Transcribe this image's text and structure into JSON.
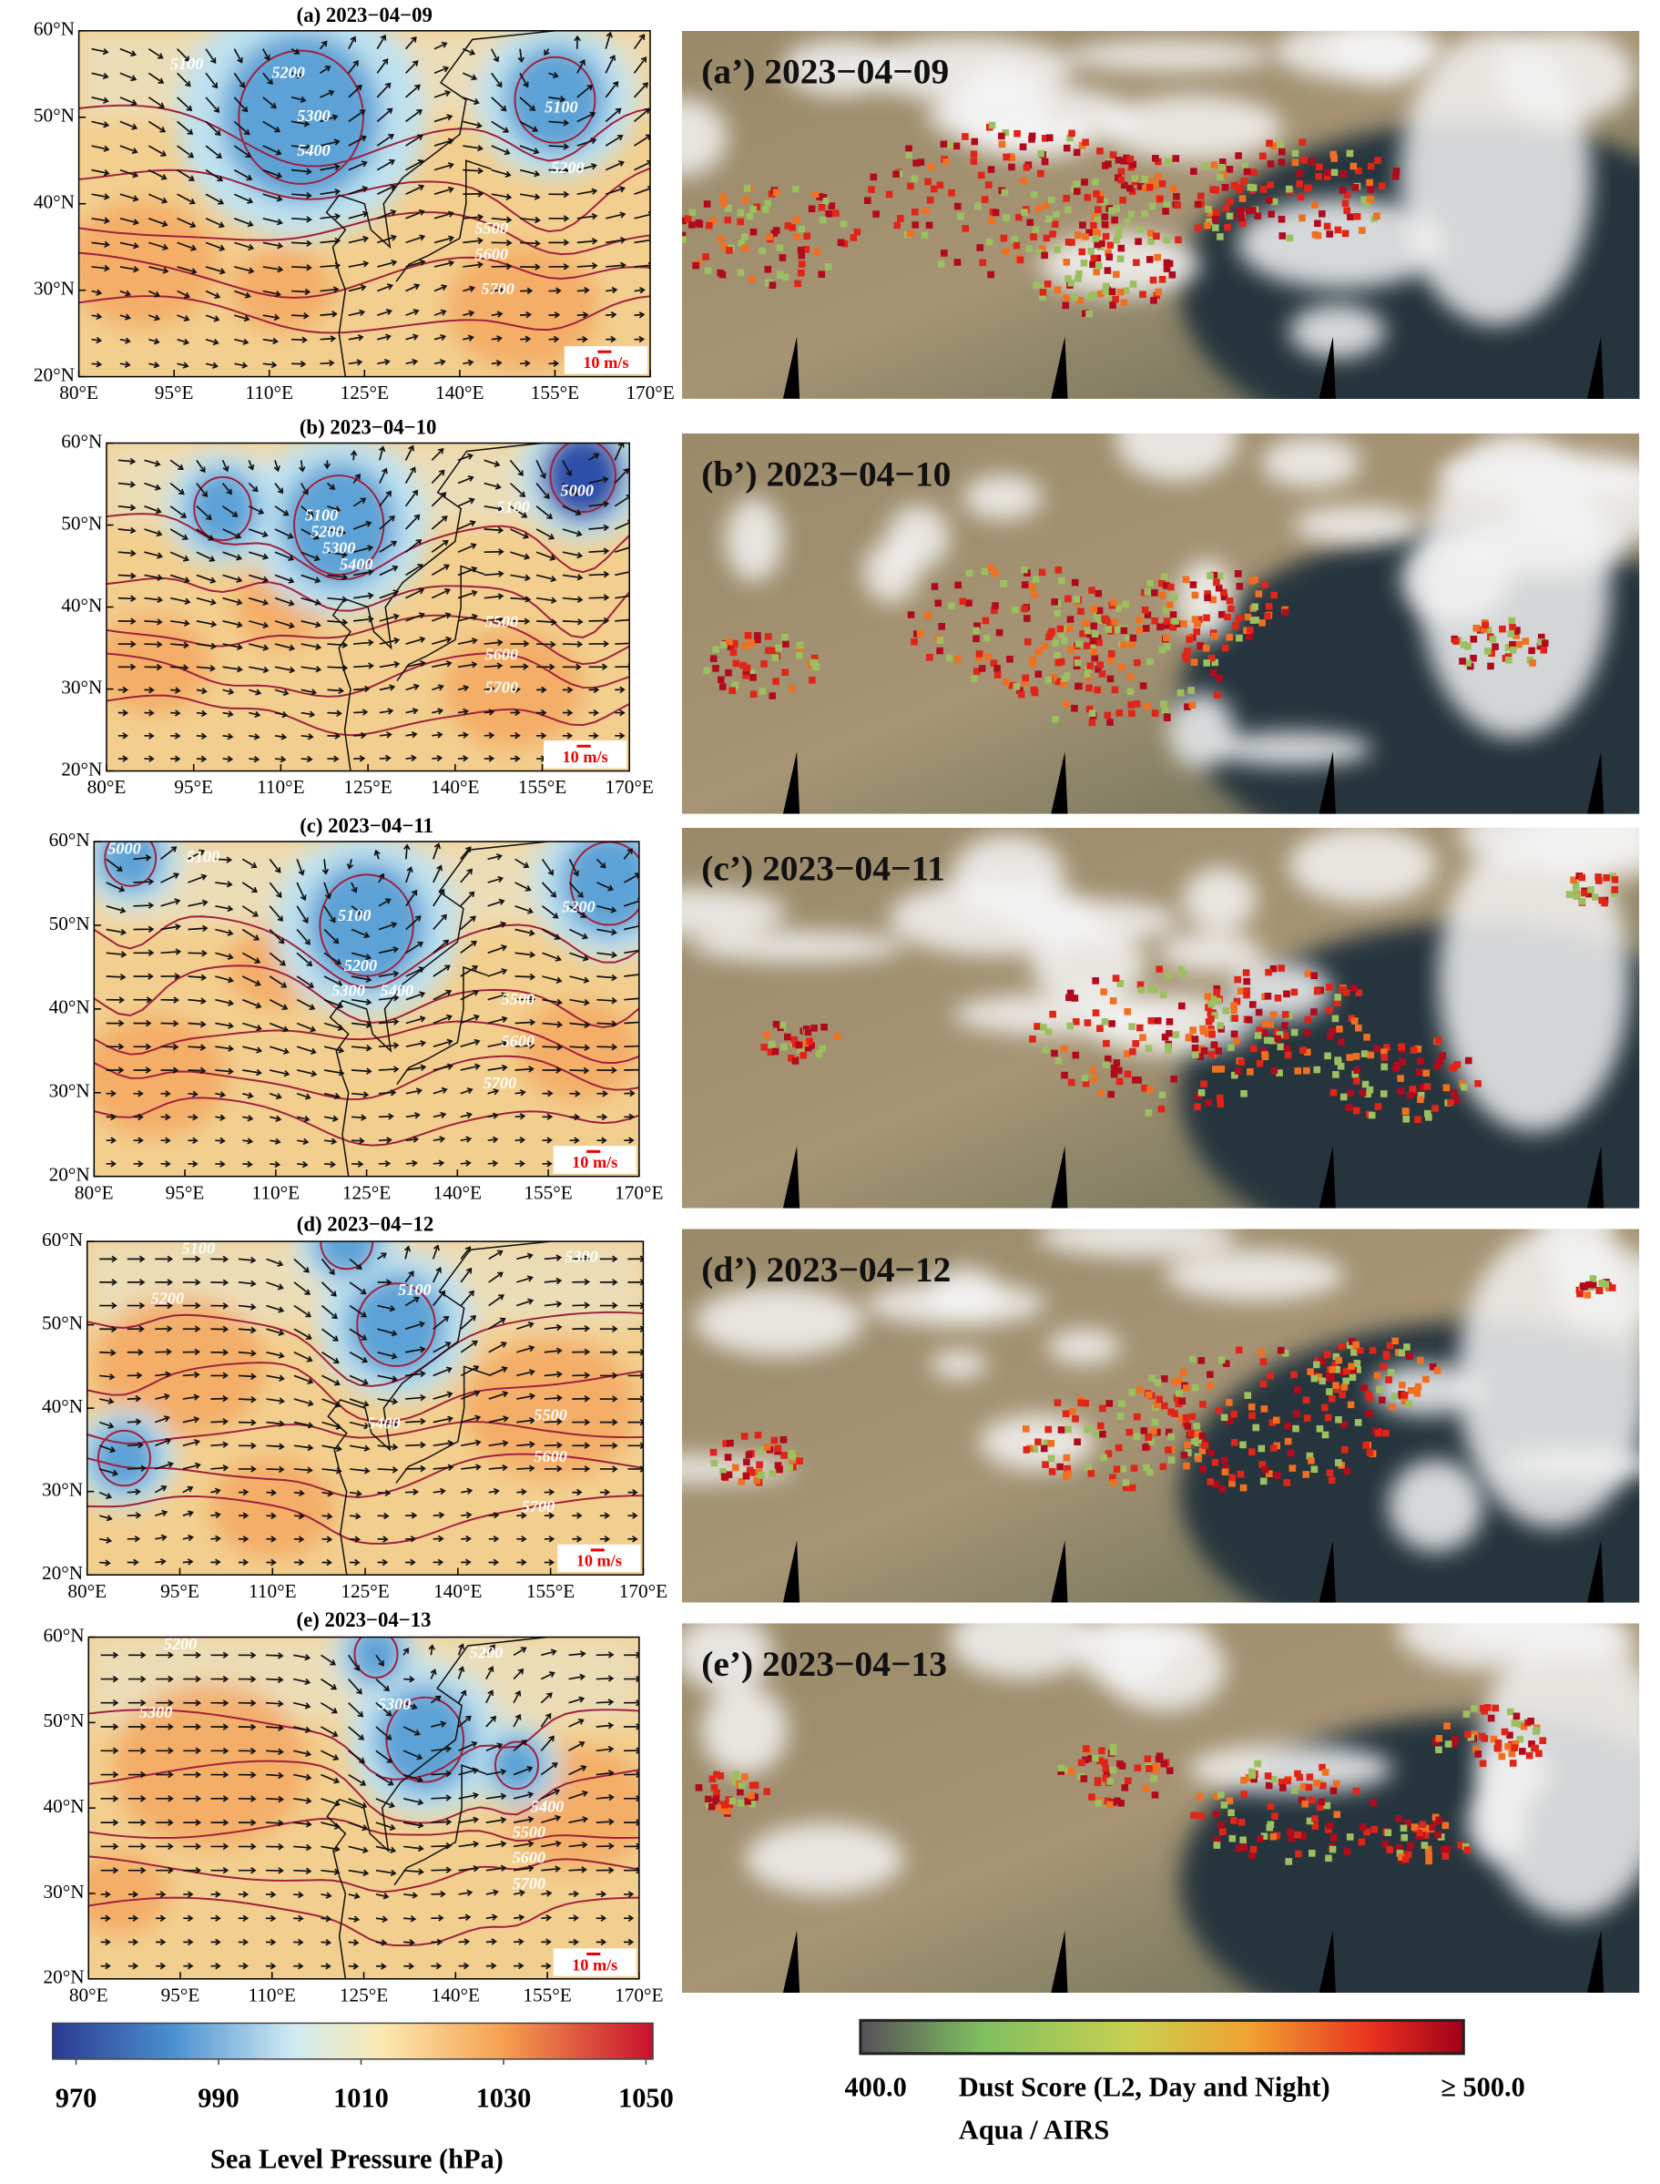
{
  "xlim": [
    80,
    170
  ],
  "ylim": [
    20,
    60
  ],
  "lon_ticks": [
    {
      "value": 80,
      "label": "80°E"
    },
    {
      "value": 95,
      "label": "95°E"
    },
    {
      "value": 110,
      "label": "110°E"
    },
    {
      "value": 125,
      "label": "125°E"
    },
    {
      "value": 140,
      "label": "140°E"
    },
    {
      "value": 155,
      "label": "155°E"
    },
    {
      "value": 170,
      "label": "170°E"
    }
  ],
  "lat_ticks": [
    {
      "value": 20,
      "label": "20°N"
    },
    {
      "value": 30,
      "label": "30°N"
    },
    {
      "value": 40,
      "label": "40°N"
    },
    {
      "value": 50,
      "label": "50°N"
    },
    {
      "value": 60,
      "label": "60°N"
    }
  ],
  "wind_reference": "10 m/s",
  "map_panels": [
    {
      "title": "(a)  2023−04−09",
      "contour_labels": [
        5100,
        5200,
        5300,
        5400,
        5100,
        5200,
        5500,
        5600,
        5700
      ]
    },
    {
      "title": "(b)  2023−04−10",
      "contour_labels": [
        5000,
        5100,
        5100,
        5200,
        5300,
        5400,
        5500,
        5600,
        5700
      ]
    },
    {
      "title": "(c)  2023−04−11",
      "contour_labels": [
        5000,
        5100,
        5100,
        5200,
        5200,
        5300,
        5400,
        5500,
        5600,
        5700
      ]
    },
    {
      "title": "(d)  2023−04−12",
      "contour_labels": [
        5100,
        5200,
        5100,
        5300,
        5400,
        5500,
        5600,
        5700
      ]
    },
    {
      "title": "(e)  2023−04−13",
      "contour_labels": [
        5200,
        5300,
        5200,
        5300,
        5400,
        5500,
        5600,
        5700
      ]
    }
  ],
  "satellite_panels": [
    {
      "title": "(a’) 2023−04−09"
    },
    {
      "title": "(b’) 2023−04−10"
    },
    {
      "title": "(c’) 2023−04−11"
    },
    {
      "title": "(d’) 2023−04−12"
    },
    {
      "title": "(e’) 2023−04−13"
    }
  ],
  "slp_colorbar": {
    "ticks": [
      970,
      990,
      1010,
      1030,
      1050
    ],
    "label": "Sea Level Pressure (hPa)"
  },
  "dust_colorbar": {
    "min_label": "400.0",
    "title": "Dust Score (L2, Day and Night)",
    "max_label": "≥ 500.0",
    "source": "Aqua / AIRS"
  }
}
